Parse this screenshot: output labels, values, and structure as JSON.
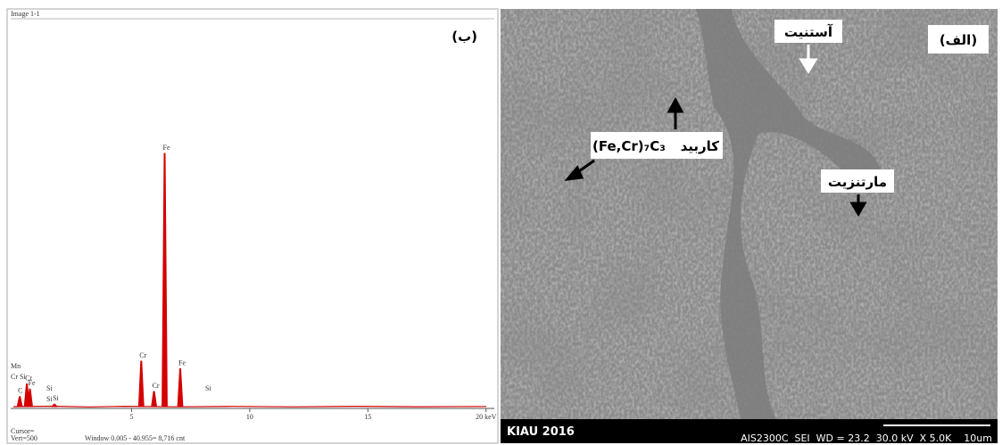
{
  "panel_b": {
    "label": "(ب)",
    "image_title": "Image 1-1",
    "chart_data": {
      "type": "spectrum",
      "color": "#d40000",
      "x": [
        0.27,
        0.57,
        0.7,
        1.74,
        5.41,
        5.95,
        6.4,
        7.06
      ],
      "values": [
        4,
        9,
        7,
        1,
        18,
        6,
        100,
        15
      ],
      "peak_labels": [
        "C",
        "Cr",
        "Fe",
        "Si",
        "Cr",
        "Cr",
        "Fe",
        "Fe"
      ],
      "xlim": [
        0,
        20.5
      ],
      "xticks": [
        5,
        10,
        15,
        {
          "value": 20,
          "label": "20 keV"
        }
      ]
    },
    "footer": {
      "cursor": "Cursor=",
      "vert": "Vert=500",
      "window": "Window 0.005 - 40.955= 8,716 cnt"
    },
    "extra_labels": [
      "Mn",
      "Cr Si",
      "Si",
      "Si",
      "Si"
    ]
  },
  "panel_a": {
    "label": "(الف)",
    "austenite": "آستنیت",
    "carbide": "کاربید",
    "formula": "(Fe,Cr)₇C₃",
    "martensite": "مارتنزیت",
    "bar_left": "KIAU 2016",
    "bar_right": "AIS2300C  SEI  WD = 23.2  30.0 kV  X 5.0K    10um"
  }
}
